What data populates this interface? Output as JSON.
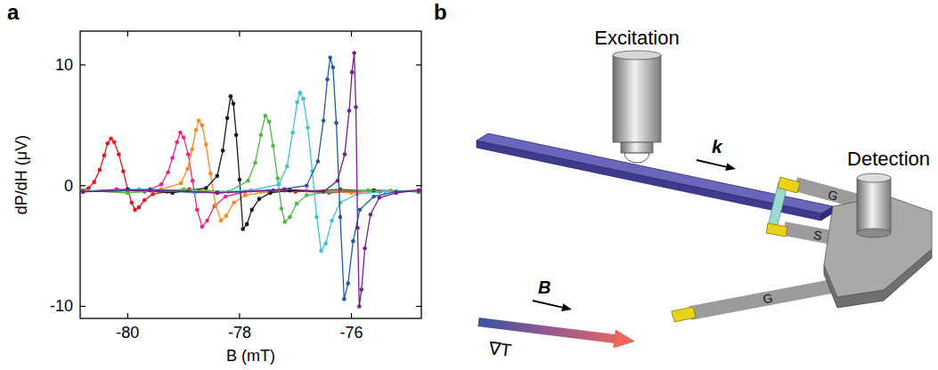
{
  "panels": [
    "a",
    "b"
  ],
  "chart_data": {
    "type": "line",
    "xlabel": "B (mT)",
    "ylabel": "dP/dH (μV)",
    "xlim": [
      -80.85,
      -74.75
    ],
    "ylim": [
      -11,
      12.8
    ],
    "xticks": [
      -80,
      -78,
      -76
    ],
    "yticks": [
      -10,
      0,
      10
    ],
    "grid": false,
    "marker": "circle",
    "line_style": "solid",
    "series": [
      {
        "color": "#e8141c",
        "x": [
          -80.8,
          -80.7,
          -80.6,
          -80.5,
          -80.42,
          -80.36,
          -80.3,
          -80.24,
          -80.16,
          -80.08,
          -80.0,
          -79.93,
          -79.87,
          -79.8,
          -79.7,
          -79.55,
          -79.3,
          -78.9,
          -78.4,
          -77.8,
          -77.0,
          -76.2,
          -75.5,
          -74.8
        ],
        "values": [
          -0.4,
          -0.2,
          0.3,
          1.3,
          2.5,
          3.5,
          3.9,
          3.6,
          2.6,
          1.2,
          -0.3,
          -1.4,
          -2.0,
          -1.8,
          -1.2,
          -0.7,
          -0.5,
          -0.3,
          -0.6,
          -0.4,
          -0.5,
          -0.3,
          -0.5,
          -0.4
        ]
      },
      {
        "color": "#e8258c",
        "x": [
          -80.8,
          -80.2,
          -79.7,
          -79.4,
          -79.28,
          -79.2,
          -79.12,
          -79.06,
          -79.0,
          -78.92,
          -78.84,
          -78.76,
          -78.67,
          -78.58,
          -78.45,
          -78.25,
          -77.9,
          -77.2,
          -76.4,
          -75.6,
          -74.8
        ],
        "values": [
          -0.5,
          -0.3,
          -0.5,
          0.1,
          1.1,
          2.3,
          3.6,
          4.4,
          4.0,
          2.6,
          0.4,
          -2.0,
          -3.4,
          -2.9,
          -1.7,
          -0.9,
          -0.5,
          -0.4,
          -0.6,
          -0.4,
          -0.5
        ]
      },
      {
        "color": "#f7891e",
        "x": [
          -80.8,
          -80.0,
          -79.4,
          -79.05,
          -78.93,
          -78.85,
          -78.78,
          -78.73,
          -78.67,
          -78.6,
          -78.52,
          -78.43,
          -78.33,
          -78.24,
          -78.1,
          -77.9,
          -77.5,
          -76.8,
          -76.0,
          -75.3,
          -74.8
        ],
        "values": [
          -0.4,
          -0.6,
          -0.3,
          0.2,
          1.4,
          3.0,
          4.6,
          5.4,
          5.0,
          3.4,
          1.0,
          -1.6,
          -2.9,
          -2.5,
          -1.4,
          -0.8,
          -0.5,
          -0.4,
          -0.6,
          -0.4,
          -0.5
        ]
      },
      {
        "color": "#1a1a1a",
        "x": [
          -80.8,
          -80.0,
          -79.2,
          -78.6,
          -78.4,
          -78.3,
          -78.22,
          -78.16,
          -78.11,
          -78.06,
          -78.0,
          -77.94,
          -77.87,
          -77.78,
          -77.65,
          -77.45,
          -77.1,
          -76.4,
          -75.6,
          -74.8
        ],
        "values": [
          -0.5,
          -0.3,
          -0.6,
          -0.2,
          0.8,
          2.9,
          5.6,
          7.4,
          6.8,
          4.2,
          0.5,
          -3.6,
          -3.2,
          -2.0,
          -1.1,
          -0.6,
          -0.4,
          -0.5,
          -0.4,
          -0.5
        ]
      },
      {
        "color": "#4fb848",
        "x": [
          -80.8,
          -80.0,
          -79.0,
          -78.2,
          -77.85,
          -77.72,
          -77.62,
          -77.54,
          -77.47,
          -77.4,
          -77.32,
          -77.25,
          -77.19,
          -77.1,
          -76.98,
          -76.8,
          -76.4,
          -75.7,
          -74.8
        ],
        "values": [
          -0.4,
          -0.6,
          -0.3,
          -0.5,
          0.4,
          1.9,
          4.2,
          5.8,
          5.3,
          3.3,
          0.6,
          -1.9,
          -3.0,
          -2.6,
          -1.5,
          -0.8,
          -0.5,
          -0.4,
          -0.5
        ]
      },
      {
        "color": "#3fc0dc",
        "x": [
          -80.8,
          -79.8,
          -78.8,
          -77.8,
          -77.3,
          -77.15,
          -77.05,
          -76.97,
          -76.92,
          -76.86,
          -76.78,
          -76.7,
          -76.62,
          -76.54,
          -76.46,
          -76.35,
          -76.2,
          -75.9,
          -75.4,
          -74.8
        ],
        "values": [
          -0.5,
          -0.3,
          -0.6,
          -0.4,
          0.1,
          1.6,
          4.4,
          6.9,
          7.7,
          7.2,
          4.8,
          1.2,
          -2.6,
          -5.4,
          -4.8,
          -2.9,
          -1.4,
          -0.7,
          -0.5,
          -0.4
        ]
      },
      {
        "color": "#1f5ca8",
        "x": [
          -80.8,
          -79.6,
          -78.4,
          -77.4,
          -76.8,
          -76.6,
          -76.5,
          -76.43,
          -76.38,
          -76.33,
          -76.27,
          -76.2,
          -76.13,
          -76.06,
          -75.97,
          -75.85,
          -75.6,
          -75.2,
          -74.8
        ],
        "values": [
          -0.5,
          -0.3,
          -0.6,
          -0.4,
          0.0,
          2.0,
          5.4,
          8.8,
          10.6,
          9.8,
          5.2,
          -2.6,
          -9.4,
          -8.1,
          -4.6,
          -2.0,
          -0.9,
          -0.5,
          -0.4
        ]
      },
      {
        "color": "#7a1f8e",
        "x": [
          -80.8,
          -79.6,
          -78.4,
          -77.2,
          -76.5,
          -76.25,
          -76.12,
          -76.04,
          -75.99,
          -75.95,
          -75.92,
          -75.89,
          -75.86,
          -75.82,
          -75.76,
          -75.66,
          -75.5,
          -75.2,
          -74.8
        ],
        "values": [
          -0.5,
          -0.4,
          -0.6,
          -0.3,
          -0.5,
          0.4,
          2.6,
          6.2,
          9.4,
          11.0,
          6.5,
          -3.5,
          -10.0,
          -8.6,
          -5.2,
          -2.4,
          -1.0,
          -0.6,
          -0.4
        ]
      }
    ]
  },
  "diagram": {
    "excitation": "Excitation",
    "wave_vector": "k",
    "detection": "Detection",
    "field": "B",
    "gradient": "∇T",
    "pads": [
      "G",
      "S",
      "G"
    ]
  }
}
